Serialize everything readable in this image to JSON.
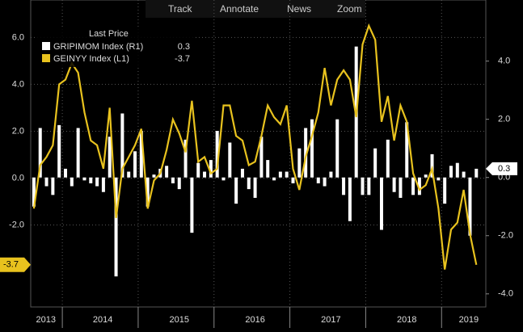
{
  "toolbar": [
    "Track",
    "Annotate",
    "News",
    "Zoom"
  ],
  "chart_data": {
    "type": "bar",
    "legend_title": "Last Price",
    "categories": [
      null,
      null,
      null,
      null,
      null,
      null,
      null,
      null,
      null,
      null,
      null,
      null,
      null,
      null,
      null,
      null,
      null,
      null,
      null,
      null,
      null,
      null,
      null,
      null,
      null,
      null,
      null,
      null,
      null,
      null,
      null,
      null,
      null,
      null,
      null,
      null,
      null,
      null,
      null,
      null,
      null,
      null,
      null,
      null,
      null,
      null,
      null,
      null,
      null,
      null,
      null,
      null,
      null,
      null,
      null,
      null,
      null,
      null,
      null,
      null,
      null,
      null,
      null,
      null,
      null,
      null,
      null,
      null,
      null,
      null,
      null
    ],
    "xlim": [
      -0.5,
      71.5
    ],
    "xticks": [
      {
        "value": 1.9,
        "label": "2013"
      },
      {
        "value": 10.9,
        "label": "2014"
      },
      {
        "value": 23,
        "label": "2015"
      },
      {
        "value": 35,
        "label": "2016"
      },
      {
        "value": 47,
        "label": "2017"
      },
      {
        "value": 59,
        "label": "2018"
      },
      {
        "value": 68.8,
        "label": "2019"
      }
    ],
    "x_separators": [
      4.5,
      16.5,
      28.5,
      40.5,
      52.5,
      64.5
    ],
    "ylim": [
      -5.5,
      7.6
    ],
    "yticks": [
      {
        "value": 6,
        "label": "6.0"
      },
      {
        "value": 4,
        "label": "4.0"
      },
      {
        "value": 2,
        "label": "2.0"
      },
      {
        "value": 0,
        "label": "0.0"
      },
      {
        "value": -2,
        "label": "-2.0"
      }
    ],
    "y2lim": [
      -4.45,
      6.1
    ],
    "y2ticks": [
      {
        "value": 4,
        "label": "4.0"
      },
      {
        "value": 2,
        "label": "2.0"
      },
      {
        "value": 0,
        "label": "0.0"
      },
      {
        "value": -2,
        "label": "-2.0"
      },
      {
        "value": -4,
        "label": "-4.0"
      }
    ],
    "grid": true,
    "series": [
      {
        "name": "GRIPIMOM Index  (R1)",
        "type": "bar",
        "axis": "y2",
        "color": "#ffffff",
        "values": [
          -1.0,
          1.7,
          -0.3,
          -0.6,
          1.8,
          0.3,
          -0.3,
          1.7,
          -0.1,
          -0.2,
          -0.3,
          -0.5,
          1.4,
          -3.4,
          2.2,
          0.2,
          0.9,
          1.6,
          -1.0,
          0.1,
          0.3,
          0.4,
          -0.2,
          -0.4,
          1.3,
          -1.9,
          0.5,
          0.2,
          0.6,
          1.6,
          -0.1,
          1.2,
          -0.9,
          0.3,
          -0.4,
          -0.7,
          1.4,
          0.6,
          -0.1,
          0.2,
          0.2,
          -0.2,
          1.0,
          1.7,
          2.0,
          -0.2,
          -0.3,
          0.2,
          2.0,
          -0.6,
          -1.5,
          4.5,
          -0.6,
          -0.6,
          1.0,
          -1.8,
          1.3,
          -0.5,
          -0.7,
          1.9,
          -0.6,
          -0.6,
          0.1,
          0.8,
          -0.1,
          -0.9,
          0.4,
          0.5,
          0.2,
          -2.0,
          0.3
        ]
      },
      {
        "name": "GEINYY Index  (L1)",
        "type": "line",
        "axis": "y",
        "color": "#e8c21e",
        "values": [
          -1.3,
          0.55,
          0.9,
          1.4,
          4.0,
          4.2,
          4.9,
          4.5,
          2.8,
          1.6,
          1.4,
          0.4,
          3.0,
          -1.7,
          0.4,
          0.9,
          1.4,
          2.1,
          -1.3,
          -0.1,
          0.2,
          1.2,
          2.5,
          1.9,
          1.1,
          3.3,
          0.7,
          0.9,
          0.2,
          0.4,
          3.1,
          3.1,
          1.8,
          1.6,
          0.55,
          0.7,
          1.8,
          3.1,
          2.6,
          2.3,
          3.1,
          0.4,
          -0.5,
          0.9,
          1.8,
          2.8,
          4.7,
          3.1,
          4.2,
          4.6,
          4.2,
          2.6,
          5.7,
          6.5,
          5.9,
          2.4,
          3.5,
          1.6,
          3.1,
          2.4,
          0.2,
          -0.5,
          -0.3,
          0.4,
          -1.3,
          -3.9,
          -2.2,
          -1.9,
          -0.5,
          -2.4,
          -3.7
        ]
      }
    ]
  }
}
